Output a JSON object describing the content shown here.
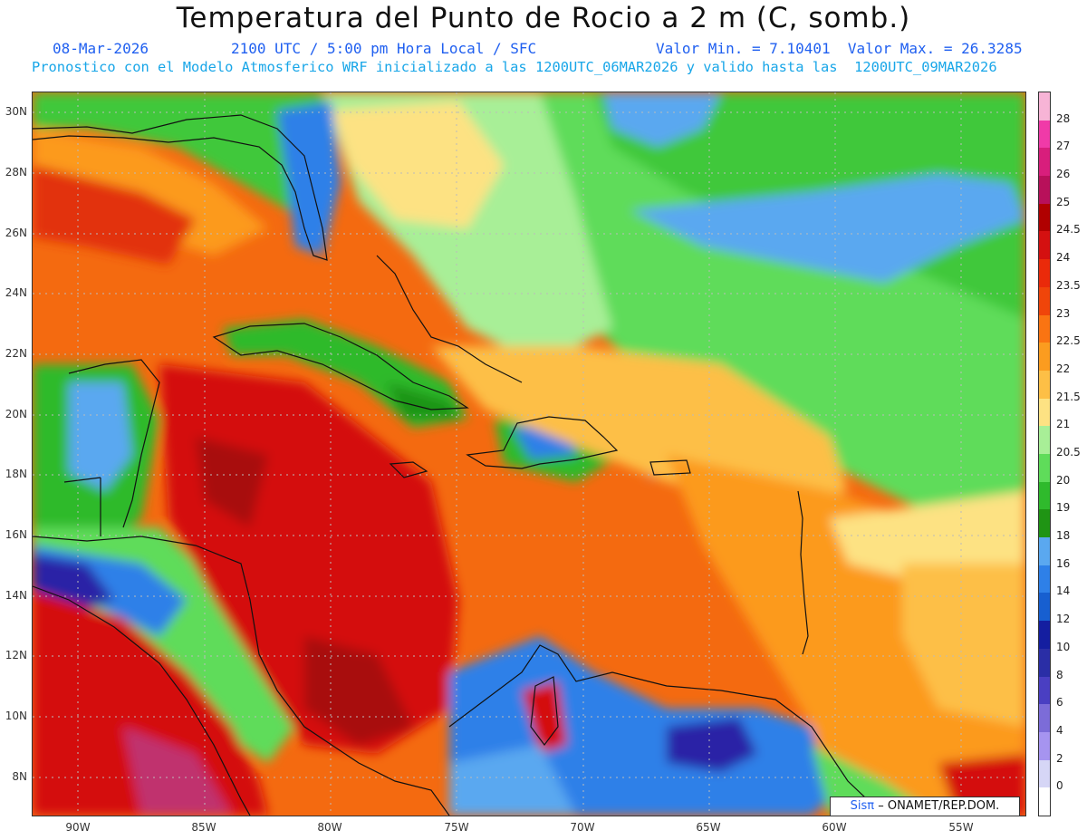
{
  "header": {
    "title": "Temperatura del Punto de Rocio a 2 m (C, somb.)",
    "date": "08-Mar-2026",
    "time": "2100 UTC / 5:00 pm Hora Local / SFC",
    "minmax": "Valor Min. = 7.10401  Valor Max. = 26.3285",
    "model_line": "Pronostico con el Modelo Atmosferico WRF inicializado a las 1200UTC_06MAR2026 y valido hasta las  1200UTC_09MAR2026"
  },
  "axes": {
    "lat_labels": [
      "30N",
      "28N",
      "26N",
      "24N",
      "22N",
      "20N",
      "18N",
      "16N",
      "14N",
      "12N",
      "10N",
      "8N"
    ],
    "lon_labels": [
      "90W",
      "85W",
      "80W",
      "75W",
      "70W",
      "65W",
      "60W",
      "55W"
    ]
  },
  "legend": {
    "labels": [
      "28",
      "27",
      "26",
      "25",
      "24.5",
      "24",
      "23.5",
      "23",
      "22.5",
      "22",
      "21.5",
      "21",
      "20.5",
      "20",
      "19",
      "18",
      "16",
      "14",
      "12",
      "10",
      "8",
      "6",
      "4",
      "2",
      "0"
    ],
    "colors": [
      "#f7b4d6",
      "#f03aa8",
      "#d81e7c",
      "#b8105a",
      "#b00000",
      "#d41010",
      "#ea2a0a",
      "#f0450a",
      "#fa7412",
      "#fb9c1f",
      "#fdbf46",
      "#fde283",
      "#a8ef97",
      "#5fdc5a",
      "#2fba2c",
      "#1f9414",
      "#5aa8f0",
      "#2e80e8",
      "#175fd0",
      "#141ea0",
      "#2a2ea6",
      "#4a3fc2",
      "#7c6cd8",
      "#a694f0",
      "#d6d6f6",
      "#ffffff"
    ]
  },
  "map": {
    "colors": {
      "land_red": "#e23010",
      "dark_red": "#a80808",
      "orange": "#f46a10",
      "light_orange": "#fc9a1c",
      "yellow": "#fde283",
      "light_green": "#a8ef97",
      "green": "#3fc83a",
      "dark_green": "#1f9414",
      "blue": "#2e80e8",
      "light_blue": "#5aa8f0",
      "purple": "#2a20a6",
      "magenta": "#c0306e"
    }
  },
  "credit": {
    "sis": "Sisπ",
    "org": "–  ONAMET/REP.DOM."
  }
}
